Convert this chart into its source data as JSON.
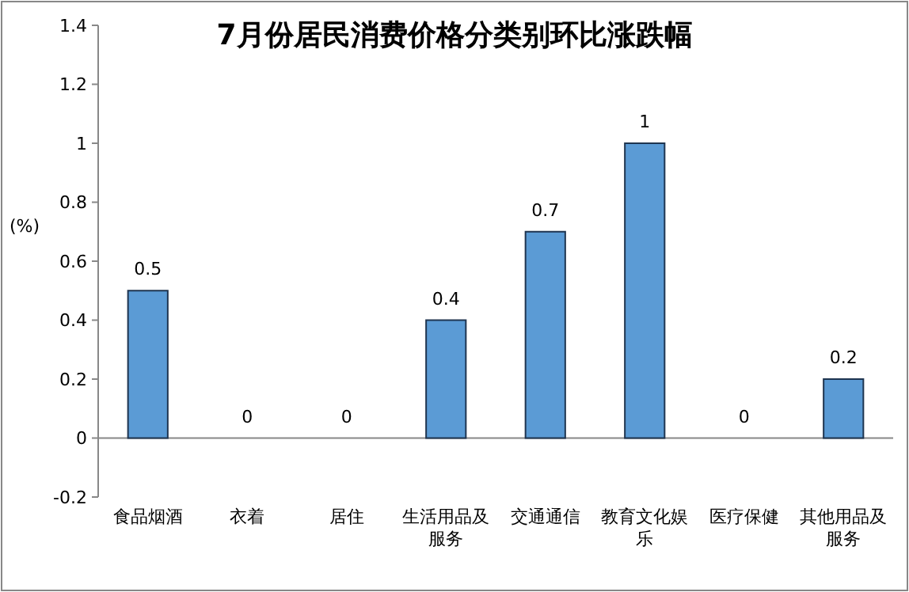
{
  "chart_data": {
    "type": "bar",
    "title": "7月份居民消费价格分类别环比涨跌幅",
    "ylabel": "(%)",
    "categories": [
      "食品烟酒",
      "衣着",
      "居住",
      "生活用品及服务",
      "交通通信",
      "教育文化娱乐",
      "医疗保健",
      "其他用品及服务"
    ],
    "values": [
      0.5,
      0,
      0,
      0.4,
      0.7,
      1,
      0,
      0.2
    ],
    "color": "#5b9bd5",
    "ylim": [
      -0.2,
      1.4
    ],
    "yticks": [
      -0.2,
      0,
      0.2,
      0.4,
      0.6,
      0.8,
      1,
      1.2,
      1.4
    ],
    "data_labels": true
  }
}
